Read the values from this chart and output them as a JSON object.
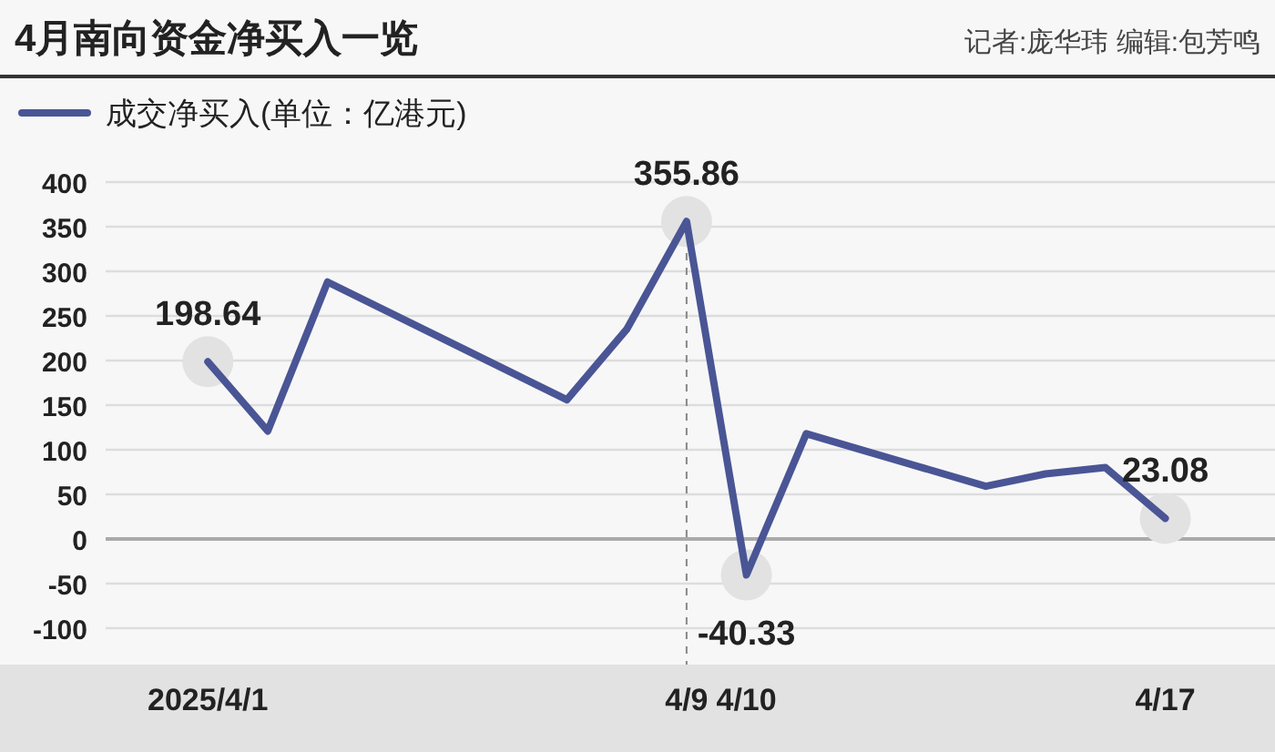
{
  "chart_data": {
    "type": "line",
    "title": "4月南向资金净买入一览",
    "subtitle": "记者:庞华玮 编辑:包芳鸣",
    "x": [
      "2025-04-01",
      "2025-04-02",
      "2025-04-03",
      "2025-04-07",
      "2025-04-08",
      "2025-04-09",
      "2025-04-10",
      "2025-04-11",
      "2025-04-14",
      "2025-04-15",
      "2025-04-16",
      "2025-04-17"
    ],
    "series": [
      {
        "name": "成交净买入(单位：亿港元)",
        "color": "#4a5595",
        "values": [
          198.64,
          121,
          288,
          156,
          235,
          355.86,
          -40.33,
          118,
          59,
          73,
          80,
          23.08
        ],
        "value_labels": [
          "198.64",
          null,
          null,
          null,
          null,
          "355.86",
          "-40.33",
          null,
          null,
          null,
          null,
          "23.08"
        ]
      }
    ],
    "xlim": [
      "2025-03-30T07:00",
      "2025-04-18T20:00"
    ],
    "xticks": [
      {
        "value": "2025-04-01",
        "label": "2025/4/1"
      },
      {
        "value": "2025-04-09",
        "label": "4/9"
      },
      {
        "value": "2025-04-10",
        "label": "4/10"
      },
      {
        "value": "2025-04-17",
        "label": "4/17"
      }
    ],
    "ylim": [
      -100,
      400
    ],
    "yticks": [
      -100,
      -50,
      0,
      50,
      100,
      150,
      200,
      250,
      300,
      350,
      400
    ],
    "ref_lines": [
      {
        "axis": "x",
        "value": "2025-04-09",
        "color": "#888888",
        "line_style": "dashed"
      }
    ],
    "grid": "y",
    "legend": "top left",
    "marker": "none",
    "line_style": "solid"
  }
}
